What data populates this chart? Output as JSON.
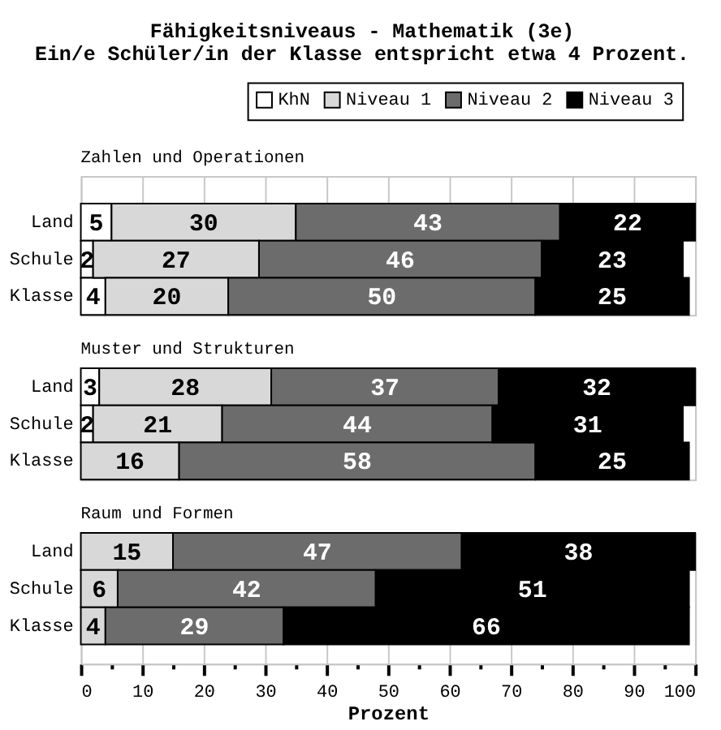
{
  "chart_data": [
    {
      "type": "other",
      "title": "Fähigkeitsniveaus - Mathematik (3e)",
      "subtitle": "Ein/e Schüler/in der Klasse entspricht etwa 4 Prozent."
    },
    {
      "type": "bar",
      "title": "Zahlen und Operationen",
      "orientation": "horizontal",
      "stacked": true,
      "categories": [
        "Land",
        "Schule",
        "Klasse"
      ],
      "series": [
        {
          "name": "KhN",
          "color": "#ffffff",
          "values": [
            5,
            2,
            4
          ]
        },
        {
          "name": "Niveau 1",
          "color": "#d8d8d8",
          "values": [
            30,
            27,
            20
          ]
        },
        {
          "name": "Niveau 2",
          "color": "#6c6c6c",
          "values": [
            43,
            46,
            50
          ]
        },
        {
          "name": "Niveau 3",
          "color": "#000000",
          "values": [
            22,
            23,
            25
          ]
        }
      ],
      "xlim": [
        0,
        100
      ],
      "xticks": [
        0,
        10,
        20,
        30,
        40,
        50,
        60,
        70,
        80,
        90,
        100
      ],
      "grid": "x",
      "data_labels": true,
      "legend": "top right",
      "tick_labels": "y"
    },
    {
      "type": "bar",
      "title": "Muster und Strukturen",
      "orientation": "horizontal",
      "stacked": true,
      "categories": [
        "Land",
        "Schule",
        "Klasse"
      ],
      "series": [
        {
          "color": "#ffffff",
          "values": [
            3,
            2,
            null
          ]
        },
        {
          "color": "#d8d8d8",
          "values": [
            28,
            21,
            16
          ]
        },
        {
          "color": "#6c6c6c",
          "values": [
            37,
            44,
            58
          ]
        },
        {
          "color": "#000000",
          "values": [
            32,
            31,
            25
          ]
        }
      ],
      "xlim": [
        0,
        100
      ],
      "xticks": [
        0,
        10,
        20,
        30,
        40,
        50,
        60,
        70,
        80,
        90,
        100
      ],
      "grid": "x",
      "data_labels": true,
      "tick_labels": "y"
    },
    {
      "type": "bar",
      "title": "Raum und Formen",
      "orientation": "horizontal",
      "stacked": true,
      "categories": [
        "Land",
        "Schule",
        "Klasse"
      ],
      "series": [
        {
          "color": "#ffffff",
          "values": [
            null,
            null,
            null
          ]
        },
        {
          "color": "#d8d8d8",
          "values": [
            15,
            6,
            4
          ]
        },
        {
          "color": "#6c6c6c",
          "values": [
            47,
            42,
            29
          ]
        },
        {
          "color": "#000000",
          "values": [
            38,
            51,
            66
          ]
        }
      ],
      "xlim": [
        0,
        100
      ],
      "xticks": [
        0,
        {
          "value": 5,
          "label": null
        },
        10,
        {
          "value": 15,
          "label": null
        },
        20,
        {
          "value": 25,
          "label": null
        },
        30,
        {
          "value": 35,
          "label": null
        },
        40,
        {
          "value": 45,
          "label": null
        },
        50,
        {
          "value": 55,
          "label": null
        },
        60,
        {
          "value": 65,
          "label": null
        },
        70,
        {
          "value": 75,
          "label": null
        },
        80,
        {
          "value": 85,
          "label": null
        },
        90,
        {
          "value": 95,
          "label": null
        },
        100
      ],
      "xlabel": "Prozent",
      "grid": "x",
      "data_labels": true
    }
  ]
}
